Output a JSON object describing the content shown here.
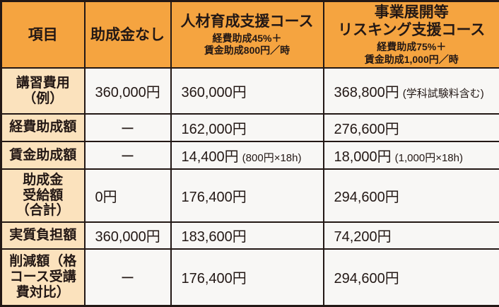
{
  "table": {
    "colors": {
      "header_bg": "#F5A440",
      "item_col_bg": "#FBE2BD",
      "cell_bg": "#F8F7F5",
      "border": "#231815",
      "text": "#231815"
    },
    "header": {
      "col1": "項目",
      "col2": "助成金なし",
      "col3": {
        "title": "人材育成支援コース",
        "subtitle": "経費助成45%＋\n賃金助成800円／時"
      },
      "col4": {
        "title": "事業展開等\nリスキング支援コース",
        "subtitle": "経費助成75%＋\n賃金助成1,000円／時"
      }
    },
    "rows": [
      {
        "item": "講習費用\n（例）",
        "cells": [
          {
            "text": "360,000円"
          },
          {
            "text": "360,000円"
          },
          {
            "text": "368,800円",
            "note": "(学科試験料含む)"
          }
        ]
      },
      {
        "item": "経費助成額",
        "cells": [
          {
            "text": "ー",
            "align": "center"
          },
          {
            "text": "162,000円"
          },
          {
            "text": "276,600円"
          }
        ]
      },
      {
        "item": "賃金助成額",
        "cells": [
          {
            "text": "ー",
            "align": "center"
          },
          {
            "text": "14,400円",
            "note": "(800円×18h)"
          },
          {
            "text": "18,000円",
            "note": "(1,000円×18h)"
          }
        ]
      },
      {
        "item": "助成金\n受給額\n（合計）",
        "cells": [
          {
            "text": "0円"
          },
          {
            "text": "176,400円"
          },
          {
            "text": "294,600円"
          }
        ]
      },
      {
        "item": "実質負担額",
        "cells": [
          {
            "text": "360,000円"
          },
          {
            "text": "183,600円"
          },
          {
            "text": "74,200円"
          }
        ]
      },
      {
        "item": "削減額（格\nコース受講\n費対比）",
        "cells": [
          {
            "text": "ー",
            "align": "center"
          },
          {
            "text": "176,400円"
          },
          {
            "text": "294,600円"
          }
        ]
      }
    ]
  }
}
